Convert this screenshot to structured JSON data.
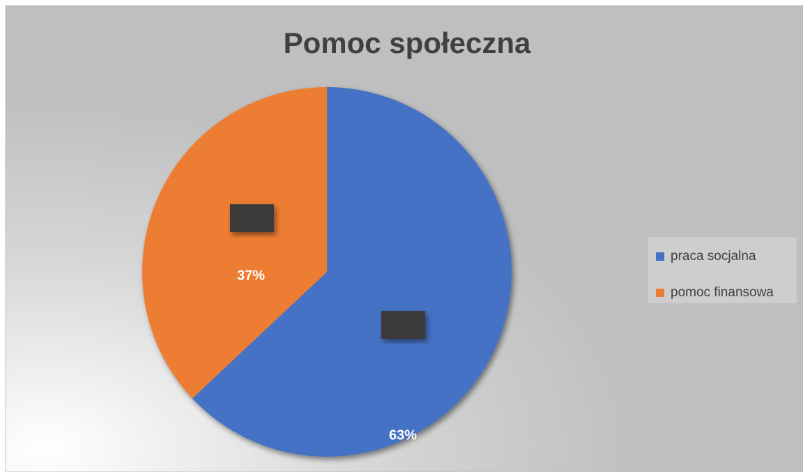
{
  "chart_data": {
    "type": "pie",
    "title": "Pomoc społeczna",
    "categories": [
      "praca socjalna",
      "pomoc finansowa"
    ],
    "values": [
      63,
      37
    ],
    "value_labels": [
      "63%",
      "37%"
    ],
    "colors": [
      "#4472c4",
      "#ed7d31"
    ],
    "legend": "right"
  }
}
